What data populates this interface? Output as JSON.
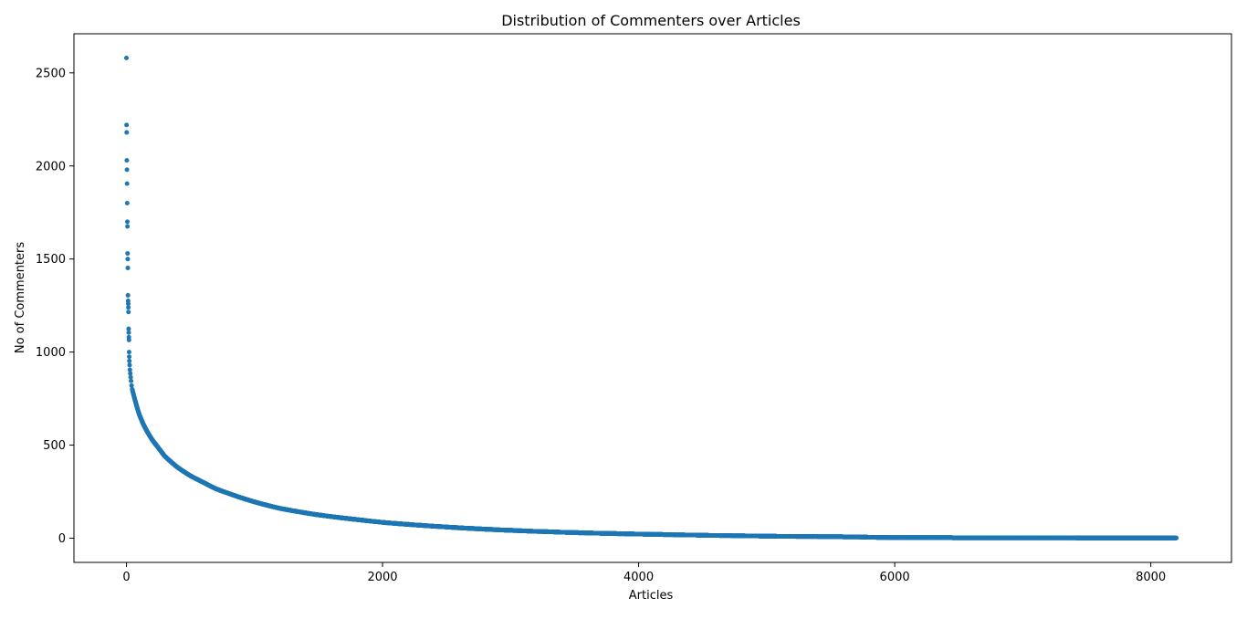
{
  "chart_data": {
    "type": "scatter",
    "title": "Distribution of Commenters over Articles",
    "xlabel": "Articles",
    "ylabel": "No of Commenters",
    "xlim": [
      -410,
      8630
    ],
    "ylim": [
      -130,
      2710
    ],
    "xticks": [
      0,
      2000,
      4000,
      6000,
      8000
    ],
    "yticks": [
      0,
      500,
      1000,
      1500,
      2000,
      2500
    ],
    "grid": false,
    "legend": "none",
    "series_color": "#1f77b4",
    "head_points": [
      [
        0,
        2580
      ],
      [
        1,
        2220
      ],
      [
        2,
        2180
      ],
      [
        3,
        2030
      ],
      [
        4,
        1980
      ],
      [
        5,
        1905
      ],
      [
        6,
        1800
      ],
      [
        7,
        1700
      ],
      [
        8,
        1675
      ],
      [
        9,
        1530
      ],
      [
        10,
        1500
      ],
      [
        11,
        1452
      ],
      [
        12,
        1305
      ],
      [
        13,
        1275
      ],
      [
        14,
        1260
      ],
      [
        15,
        1240
      ],
      [
        16,
        1215
      ],
      [
        17,
        1125
      ],
      [
        18,
        1105
      ],
      [
        19,
        1080
      ],
      [
        20,
        1065
      ],
      [
        21,
        1000
      ],
      [
        22,
        975
      ],
      [
        23,
        952
      ],
      [
        25,
        930
      ],
      [
        27,
        905
      ],
      [
        30,
        885
      ],
      [
        33,
        865
      ],
      [
        36,
        845
      ],
      [
        40,
        820
      ],
      [
        45,
        800
      ]
    ],
    "curve_anchors": [
      [
        45,
        800
      ],
      [
        60,
        760
      ],
      [
        80,
        710
      ],
      [
        100,
        665
      ],
      [
        130,
        615
      ],
      [
        160,
        575
      ],
      [
        200,
        530
      ],
      [
        250,
        485
      ],
      [
        300,
        440
      ],
      [
        400,
        380
      ],
      [
        500,
        335
      ],
      [
        600,
        300
      ],
      [
        700,
        265
      ],
      [
        800,
        240
      ],
      [
        1000,
        195
      ],
      [
        1200,
        160
      ],
      [
        1500,
        125
      ],
      [
        1800,
        100
      ],
      [
        2000,
        85
      ],
      [
        2500,
        60
      ],
      [
        3000,
        42
      ],
      [
        3500,
        30
      ],
      [
        4000,
        22
      ],
      [
        4500,
        16
      ],
      [
        5000,
        11
      ],
      [
        5700,
        7
      ],
      [
        6000,
        3
      ],
      [
        7000,
        2
      ],
      [
        8000,
        1
      ],
      [
        8200,
        1
      ]
    ],
    "total_points": 8200
  }
}
